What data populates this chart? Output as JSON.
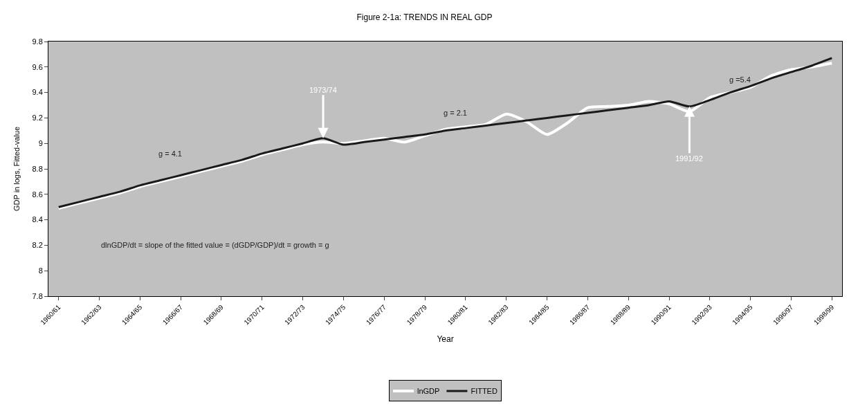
{
  "chart_data": {
    "type": "line",
    "title": "Figure 2-1a: TRENDS IN REAL GDP",
    "xlabel": "Year",
    "ylabel": "GDP in logs, Fitted-value",
    "categories": [
      "1960/61",
      null,
      "1962/63",
      null,
      "1964/65",
      null,
      "1966/67",
      null,
      "1968/69",
      null,
      "1970/71",
      null,
      "1972/73",
      null,
      "1974/75",
      null,
      "1976/77",
      null,
      "1978/79",
      null,
      "1980/81",
      null,
      "1982/83",
      null,
      "1984/85",
      null,
      "1986/87",
      null,
      "1988/89",
      null,
      "1990/91",
      null,
      "1992/93",
      null,
      "1994/95",
      null,
      "1996/97",
      null,
      "1998/99"
    ],
    "series": [
      {
        "name": "lnGDP",
        "color": "#ffffff",
        "values": [
          8.49,
          8.53,
          8.57,
          8.61,
          8.66,
          8.7,
          8.74,
          8.78,
          8.82,
          8.86,
          8.91,
          8.95,
          8.99,
          9.01,
          9.0,
          9.02,
          9.04,
          9.01,
          9.06,
          9.11,
          9.13,
          9.15,
          9.23,
          9.17,
          9.07,
          9.16,
          9.28,
          9.29,
          9.3,
          9.33,
          9.31,
          9.25,
          9.36,
          9.4,
          9.44,
          9.53,
          9.58,
          9.6,
          9.63
        ]
      },
      {
        "name": "FITTED",
        "color": "#1a1a1a",
        "values": [
          8.5,
          8.54,
          8.58,
          8.62,
          8.67,
          8.71,
          8.75,
          8.79,
          8.83,
          8.87,
          8.92,
          8.96,
          9.0,
          9.04,
          8.99,
          9.01,
          9.03,
          9.05,
          9.07,
          9.1,
          9.12,
          9.14,
          9.16,
          9.18,
          9.2,
          9.22,
          9.24,
          9.26,
          9.28,
          9.3,
          9.33,
          9.29,
          9.34,
          9.4,
          9.45,
          9.51,
          9.56,
          9.61,
          9.67
        ]
      }
    ],
    "ylim": [
      7.8,
      9.8
    ],
    "yticks": [
      7.8,
      8,
      8.2,
      8.4,
      8.6,
      8.8,
      9,
      9.2,
      9.4,
      9.6,
      9.8
    ],
    "grid": false,
    "legend": "bottom",
    "marker": "none",
    "line_style": "solid",
    "annotations": [
      {
        "text": "1973/74",
        "y": 9.04
      },
      {
        "text": "1991/92",
        "y": 9.29
      },
      "g = 4.1",
      "g = 2.1",
      "g =5.4",
      "dlnGDP/dt = slope of the fitted value = (dGDP/GDP)/dt = growth = g"
    ]
  }
}
